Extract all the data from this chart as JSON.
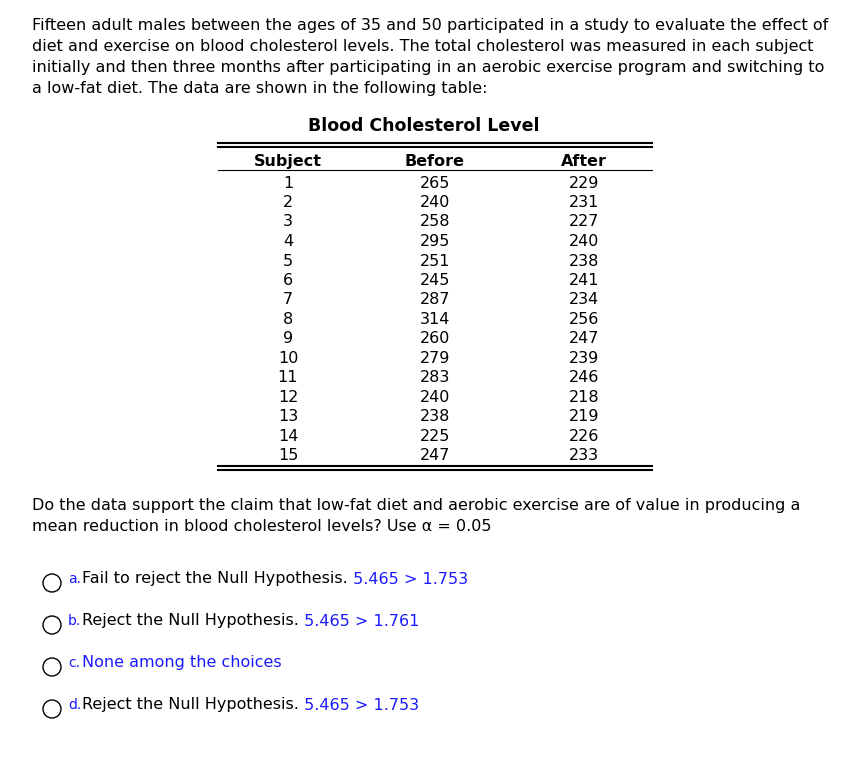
{
  "para_lines": [
    "Fifteen adult males between the ages of 35 and 50 participated in a study to evaluate the effect of",
    "diet and exercise on blood cholesterol levels. The total cholesterol was measured in each subject",
    "initially and then three months after participating in an aerobic exercise program and switching to",
    "a low-fat diet. The data are shown in the following table:"
  ],
  "table_title": "Blood Cholesterol Level",
  "col_headers": [
    "Subject",
    "Before",
    "After"
  ],
  "table_data": [
    [
      1,
      265,
      229
    ],
    [
      2,
      240,
      231
    ],
    [
      3,
      258,
      227
    ],
    [
      4,
      295,
      240
    ],
    [
      5,
      251,
      238
    ],
    [
      6,
      245,
      241
    ],
    [
      7,
      287,
      234
    ],
    [
      8,
      314,
      256
    ],
    [
      9,
      260,
      247
    ],
    [
      10,
      279,
      239
    ],
    [
      11,
      283,
      246
    ],
    [
      12,
      240,
      218
    ],
    [
      13,
      238,
      219
    ],
    [
      14,
      225,
      226
    ],
    [
      15,
      247,
      233
    ]
  ],
  "question_lines": [
    "Do the data support the claim that low-fat diet and aerobic exercise are of value in producing a",
    "mean reduction in blood cholesterol levels? Use α = 0.05"
  ],
  "choices": [
    {
      "label": "a",
      "black_text": "Fail to reject the Null Hypothesis.",
      "blue_text": " 5.465 > 1.753"
    },
    {
      "label": "b",
      "black_text": "Reject the Null Hypothesis.",
      "blue_text": " 5.465 > 1.761"
    },
    {
      "label": "c",
      "black_text": "",
      "blue_text": "None among the choices"
    },
    {
      "label": "d",
      "black_text": "Reject the Null Hypothesis.",
      "blue_text": " 5.465 > 1.753"
    }
  ],
  "blue": "#1a1aff",
  "black": "#000000",
  "bg": "#ffffff",
  "font_size": 11.5,
  "table_font_size": 11.5,
  "title_font_size": 12.5,
  "fig_w": 8.49,
  "fig_h": 7.73,
  "dpi": 100
}
